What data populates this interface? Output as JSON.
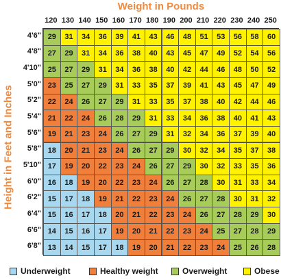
{
  "chart_data": {
    "type": "table",
    "title": "Weight in Pounds",
    "ylabel": "Height in Feet and Inches",
    "columns": [
      "120",
      "130",
      "140",
      "150",
      "160",
      "170",
      "180",
      "190",
      "200",
      "210",
      "220",
      "230",
      "240",
      "250"
    ],
    "rows": [
      {
        "height": "4'6\"",
        "values": [
          29,
          31,
          34,
          36,
          39,
          41,
          43,
          46,
          48,
          51,
          53,
          56,
          58,
          60
        ]
      },
      {
        "height": "4'8\"",
        "values": [
          27,
          29,
          31,
          34,
          36,
          38,
          40,
          43,
          45,
          47,
          49,
          52,
          54,
          56
        ]
      },
      {
        "height": "4'10\"",
        "values": [
          25,
          27,
          29,
          31,
          34,
          36,
          38,
          40,
          42,
          44,
          46,
          48,
          50,
          52
        ]
      },
      {
        "height": "5'0\"",
        "values": [
          23,
          25,
          27,
          29,
          31,
          33,
          35,
          37,
          39,
          41,
          43,
          45,
          47,
          49
        ]
      },
      {
        "height": "5'2\"",
        "values": [
          22,
          24,
          26,
          27,
          29,
          31,
          33,
          35,
          37,
          38,
          40,
          42,
          44,
          46
        ]
      },
      {
        "height": "5'4\"",
        "values": [
          21,
          22,
          24,
          26,
          28,
          29,
          31,
          33,
          34,
          36,
          38,
          40,
          41,
          43
        ]
      },
      {
        "height": "5'6\"",
        "values": [
          19,
          21,
          23,
          24,
          26,
          27,
          29,
          31,
          32,
          34,
          36,
          37,
          39,
          40
        ]
      },
      {
        "height": "5'8\"",
        "values": [
          18,
          20,
          21,
          23,
          24,
          26,
          27,
          29,
          30,
          32,
          34,
          35,
          37,
          38
        ]
      },
      {
        "height": "5'10\"",
        "values": [
          17,
          19,
          20,
          22,
          23,
          24,
          26,
          27,
          29,
          30,
          32,
          33,
          35,
          36
        ]
      },
      {
        "height": "6'0\"",
        "values": [
          16,
          18,
          19,
          20,
          22,
          23,
          24,
          26,
          27,
          28,
          30,
          31,
          33,
          34
        ]
      },
      {
        "height": "6'2\"",
        "values": [
          15,
          17,
          18,
          19,
          21,
          22,
          23,
          24,
          26,
          27,
          28,
          30,
          31,
          32
        ]
      },
      {
        "height": "6'4\"",
        "values": [
          15,
          16,
          17,
          18,
          20,
          21,
          22,
          23,
          24,
          26,
          27,
          28,
          29,
          30
        ]
      },
      {
        "height": "6'6\"",
        "values": [
          14,
          15,
          16,
          17,
          19,
          20,
          21,
          22,
          23,
          24,
          25,
          27,
          28,
          29
        ]
      },
      {
        "height": "6'8\"",
        "values": [
          13,
          14,
          15,
          17,
          18,
          19,
          20,
          21,
          22,
          23,
          24,
          25,
          26,
          28
        ]
      }
    ],
    "categories": [
      {
        "name": "Underweight",
        "color": "#a8d8f0",
        "max": 18
      },
      {
        "name": "Healthy weight",
        "color": "#f07f3c",
        "max": 24
      },
      {
        "name": "Overweight",
        "color": "#a8cc5a",
        "max": 29
      },
      {
        "name": "Obese",
        "color": "#fff200",
        "max": 999
      }
    ]
  }
}
